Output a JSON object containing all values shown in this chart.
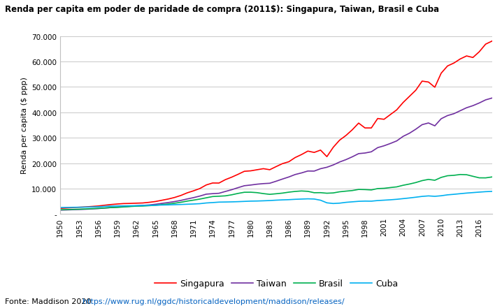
{
  "title": "Renda per capita em poder de paridade de compra (2011$): Singapura, Taiwan, Brasil e Cuba",
  "ylabel": "Renda per capita ($ ppp)",
  "source_text": "Fonte: Maddison 2020 ",
  "source_url": "https://www.rug.nl/ggdc/historicaldevelopment/maddison/releases/",
  "ylim": [
    0,
    70000
  ],
  "yticks": [
    0,
    10000,
    20000,
    30000,
    40000,
    50000,
    60000,
    70000
  ],
  "ytick_labels": [
    "-",
    "10.000",
    "20.000",
    "30.000",
    "40.000",
    "50.000",
    "60.000",
    "70.000"
  ],
  "years": [
    1950,
    1951,
    1952,
    1953,
    1954,
    1955,
    1956,
    1957,
    1958,
    1959,
    1960,
    1961,
    1962,
    1963,
    1964,
    1965,
    1966,
    1967,
    1968,
    1969,
    1970,
    1971,
    1972,
    1973,
    1974,
    1975,
    1976,
    1977,
    1978,
    1979,
    1980,
    1981,
    1982,
    1983,
    1984,
    1985,
    1986,
    1987,
    1988,
    1989,
    1990,
    1991,
    1992,
    1993,
    1994,
    1995,
    1996,
    1997,
    1998,
    1999,
    2000,
    2001,
    2002,
    2003,
    2004,
    2005,
    2006,
    2007,
    2008,
    2009,
    2010,
    2011,
    2012,
    2013,
    2014,
    2015,
    2016,
    2017,
    2018
  ],
  "singapura": [
    2219,
    2372,
    2512,
    2648,
    2793,
    2960,
    3152,
    3446,
    3726,
    3935,
    4105,
    4157,
    4256,
    4336,
    4594,
    4915,
    5398,
    5887,
    6499,
    7293,
    8326,
    9121,
    10033,
    11429,
    12199,
    12175,
    13504,
    14488,
    15609,
    16801,
    16982,
    17416,
    17834,
    17427,
    18650,
    19820,
    20555,
    22210,
    23386,
    24752,
    24225,
    25143,
    22568,
    26248,
    29052,
    30893,
    33143,
    35777,
    33862,
    33855,
    37579,
    37266,
    39130,
    40982,
    43862,
    46283,
    48703,
    52291,
    51929,
    49875,
    55408,
    58253,
    59397,
    61010,
    62199,
    61584,
    63846,
    66835,
    68032
  ],
  "taiwan": [
    1528,
    1599,
    1693,
    1774,
    1869,
    2002,
    2146,
    2334,
    2537,
    2712,
    2861,
    3028,
    3224,
    3383,
    3560,
    3823,
    4167,
    4503,
    4894,
    5342,
    5914,
    6446,
    7065,
    7804,
    8004,
    8148,
    8863,
    9555,
    10359,
    11124,
    11397,
    11727,
    11955,
    12098,
    12894,
    13754,
    14565,
    15531,
    16165,
    16914,
    16884,
    17825,
    18396,
    19299,
    20457,
    21388,
    22502,
    23760,
    23994,
    24476,
    26116,
    26838,
    27748,
    28764,
    30542,
    31776,
    33363,
    35157,
    35823,
    34698,
    37485,
    38728,
    39464,
    40638,
    41812,
    42634,
    43690,
    44907,
    45624
  ],
  "brasil": [
    1672,
    1743,
    1821,
    1884,
    1971,
    2103,
    2208,
    2370,
    2533,
    2609,
    2773,
    2944,
    3088,
    3124,
    3278,
    3434,
    3688,
    3918,
    4236,
    4611,
    5076,
    5461,
    5875,
    6372,
    6870,
    6997,
    7139,
    7550,
    8098,
    8551,
    8573,
    8398,
    8023,
    7736,
    7966,
    8220,
    8590,
    8879,
    9063,
    8921,
    8372,
    8393,
    8177,
    8290,
    8737,
    8995,
    9225,
    9667,
    9608,
    9465,
    10006,
    10108,
    10404,
    10671,
    11300,
    11788,
    12373,
    13132,
    13617,
    13272,
    14398,
    15055,
    15218,
    15539,
    15457,
    14836,
    14230,
    14213,
    14573
  ],
  "cuba": [
    2551,
    2589,
    2628,
    2660,
    2700,
    2763,
    2843,
    2980,
    3095,
    3162,
    3200,
    3241,
    3282,
    3358,
    3419,
    3457,
    3524,
    3573,
    3658,
    3741,
    3841,
    3935,
    4061,
    4338,
    4495,
    4674,
    4717,
    4773,
    4851,
    4959,
    5065,
    5107,
    5190,
    5290,
    5440,
    5553,
    5638,
    5780,
    5875,
    5970,
    5895,
    5421,
    4394,
    4126,
    4267,
    4585,
    4789,
    4988,
    5076,
    5045,
    5292,
    5436,
    5588,
    5785,
    6043,
    6309,
    6604,
    6925,
    7120,
    6957,
    7176,
    7534,
    7746,
    7994,
    8230,
    8422,
    8611,
    8789,
    8900
  ],
  "colors": {
    "singapura": "#FF0000",
    "taiwan": "#7030A0",
    "brasil": "#00B050",
    "cuba": "#00B0F0"
  },
  "xtick_years": [
    1950,
    1953,
    1956,
    1959,
    1962,
    1965,
    1968,
    1971,
    1974,
    1977,
    1980,
    1983,
    1986,
    1989,
    1992,
    1995,
    1998,
    2001,
    2004,
    2007,
    2010,
    2013,
    2016
  ],
  "background_color": "#FFFFFF",
  "plot_bg_color": "#FFFFFF",
  "grid_color": "#BFBFBF"
}
